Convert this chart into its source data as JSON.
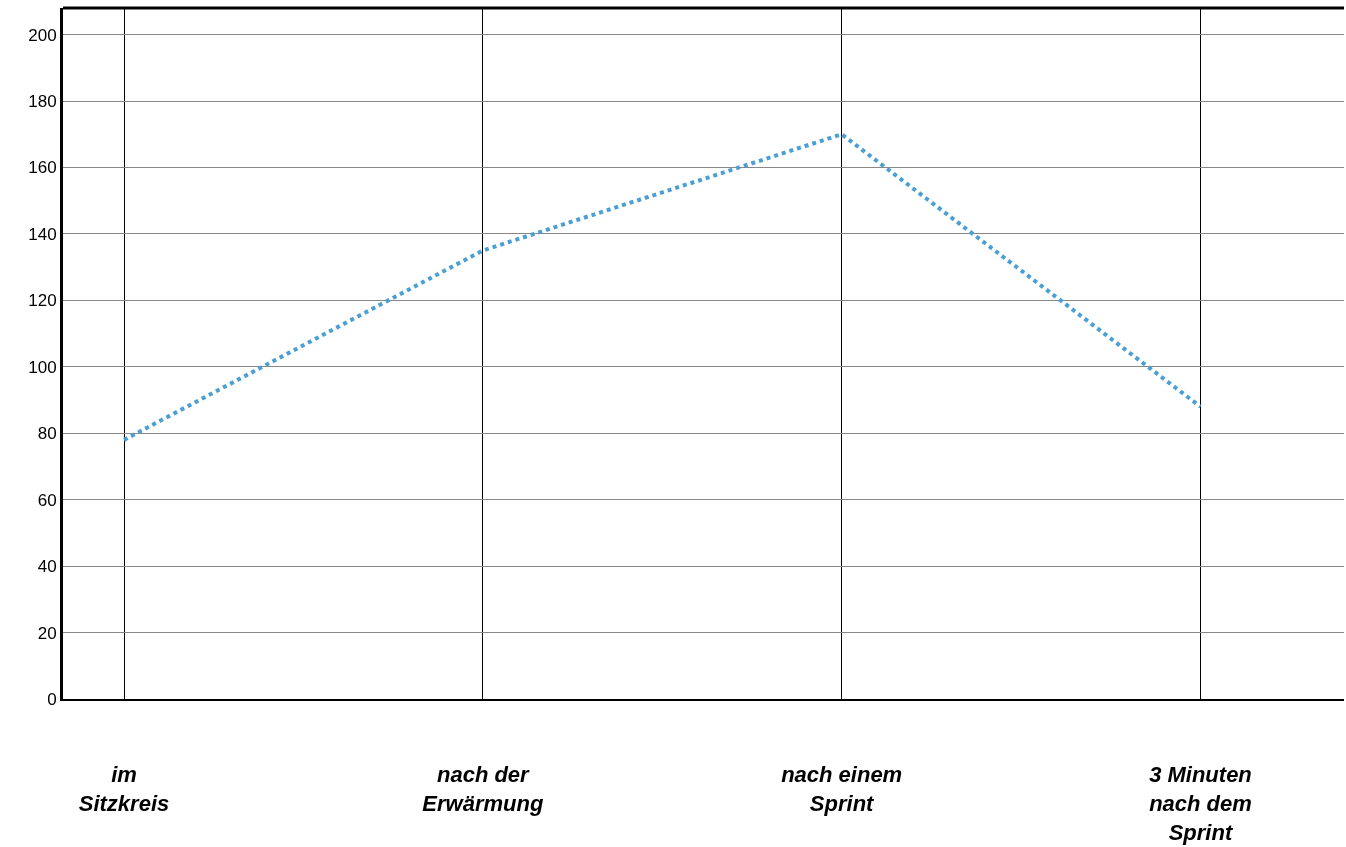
{
  "chart_data": {
    "type": "line",
    "categories": [
      "im Sitzkreis",
      "nach der Erwärmung",
      "nach einem Sprint",
      "3 Minuten nach dem Sprint"
    ],
    "series": [
      {
        "color": "#4a9fd4",
        "values": [
          78,
          135,
          170,
          88
        ]
      }
    ],
    "ylim": [
      0,
      208
    ],
    "yticks": [
      0,
      20,
      40,
      60,
      80,
      100,
      120,
      140,
      160,
      180,
      200
    ],
    "grid": true,
    "marker": "none",
    "line_style": "dotted"
  }
}
